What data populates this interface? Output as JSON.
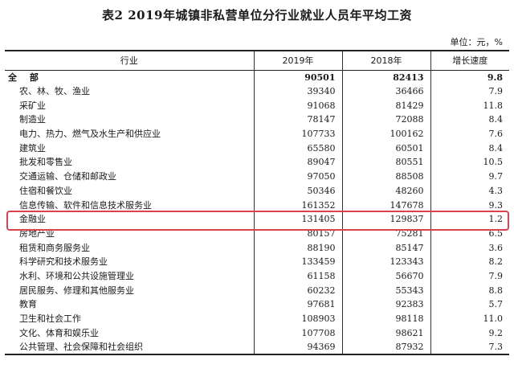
{
  "title": "表2    2019年城镇非私营单位分行业就业人员年平均工资",
  "unit": "单位：元，%",
  "headers": {
    "industry": "行业",
    "y2019": "2019年",
    "y2018": "2018年",
    "growth": "增长速度"
  },
  "rows": [
    {
      "name": "全  部",
      "y2019": "90501",
      "y2018": "82413",
      "growth": "9.8",
      "total": true
    },
    {
      "name": "农、林、牧、渔业",
      "y2019": "39340",
      "y2018": "36466",
      "growth": "7.9"
    },
    {
      "name": "采矿业",
      "y2019": "91068",
      "y2018": "81429",
      "growth": "11.8"
    },
    {
      "name": "制造业",
      "y2019": "78147",
      "y2018": "72088",
      "growth": "8.4"
    },
    {
      "name": "电力、热力、燃气及水生产和供应业",
      "y2019": "107733",
      "y2018": "100162",
      "growth": "7.6"
    },
    {
      "name": "建筑业",
      "y2019": "65580",
      "y2018": "60501",
      "growth": "8.4"
    },
    {
      "name": "批发和零售业",
      "y2019": "89047",
      "y2018": "80551",
      "growth": "10.5"
    },
    {
      "name": "交通运输、仓储和邮政业",
      "y2019": "97050",
      "y2018": "88508",
      "growth": "9.7"
    },
    {
      "name": "住宿和餐饮业",
      "y2019": "50346",
      "y2018": "48260",
      "growth": "4.3"
    },
    {
      "name": "信息传输、软件和信息技术服务业",
      "y2019": "161352",
      "y2018": "147678",
      "growth": "9.3"
    },
    {
      "name": "金融业",
      "y2019": "131405",
      "y2018": "129837",
      "growth": "1.2"
    },
    {
      "name": "房地产业",
      "y2019": "80157",
      "y2018": "75281",
      "growth": "6.5"
    },
    {
      "name": "租赁和商务服务业",
      "y2019": "88190",
      "y2018": "85147",
      "growth": "3.6"
    },
    {
      "name": "科学研究和技术服务业",
      "y2019": "133459",
      "y2018": "123343",
      "growth": "8.2"
    },
    {
      "name": "水利、环境和公共设施管理业",
      "y2019": "61158",
      "y2018": "56670",
      "growth": "7.9"
    },
    {
      "name": "居民服务、修理和其他服务业",
      "y2019": "60232",
      "y2018": "55343",
      "growth": "8.8"
    },
    {
      "name": "教育",
      "y2019": "97681",
      "y2018": "92383",
      "growth": "5.7"
    },
    {
      "name": "卫生和社会工作",
      "y2019": "108903",
      "y2018": "98118",
      "growth": "11.0"
    },
    {
      "name": "文化、体育和娱乐业",
      "y2019": "107708",
      "y2018": "98621",
      "growth": "9.2"
    },
    {
      "name": "公共管理、社会保障和社会组织",
      "y2019": "94369",
      "y2018": "87932",
      "growth": "7.3"
    }
  ],
  "highlight_color": "#d9434e"
}
